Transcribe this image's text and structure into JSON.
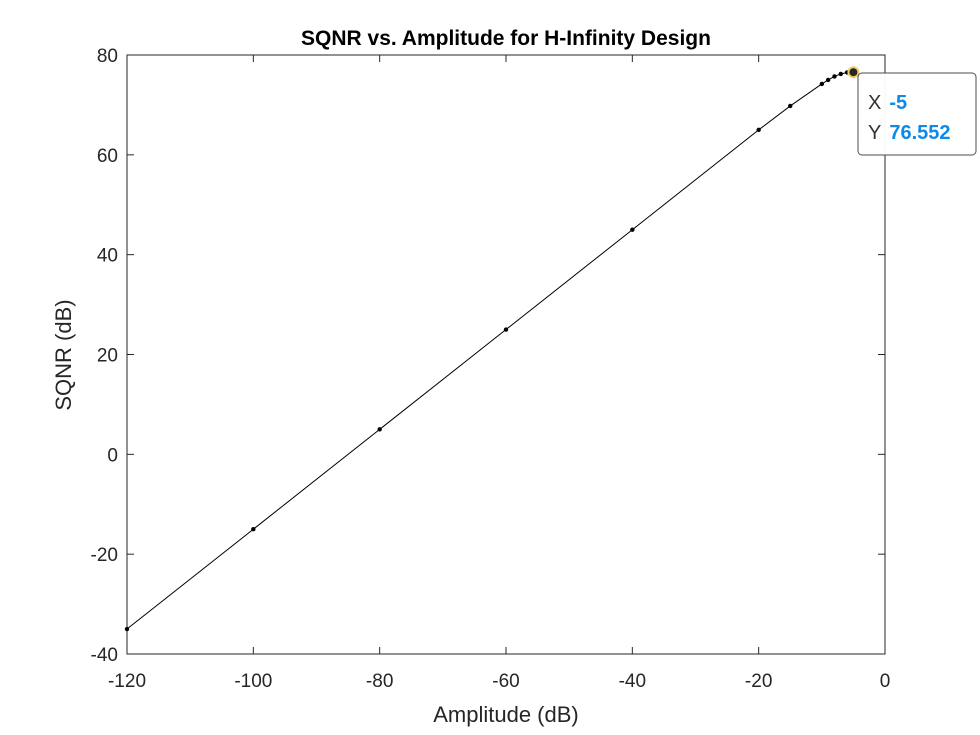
{
  "chart_data": {
    "type": "line",
    "title": "SQNR vs. Amplitude for H-Infinity Design",
    "xlabel": "Amplitude (dB)",
    "ylabel": "SQNR (dB)",
    "xlim": [
      -120,
      0
    ],
    "ylim": [
      -40,
      80
    ],
    "xticks": [
      -120,
      -100,
      -80,
      -60,
      -40,
      -20,
      0
    ],
    "yticks": [
      -40,
      -20,
      0,
      20,
      40,
      60,
      80
    ],
    "grid": false,
    "series": [
      {
        "color": "#000000",
        "marker": "dot",
        "x": [
          -120,
          -100,
          -80,
          -60,
          -40,
          -20,
          -15,
          -10,
          -9,
          -8,
          -7,
          -6,
          -5
        ],
        "y": [
          -35,
          -15,
          5,
          25,
          45,
          65,
          69.8,
          74.2,
          75.0,
          75.7,
          76.2,
          76.5,
          76.552
        ]
      }
    ],
    "datatip": {
      "x_key": "X",
      "y_key": "Y",
      "x_value": "-5",
      "y_value": "76.552",
      "x": -5,
      "y": 76.552,
      "value_color": "#0d8ae8"
    }
  }
}
